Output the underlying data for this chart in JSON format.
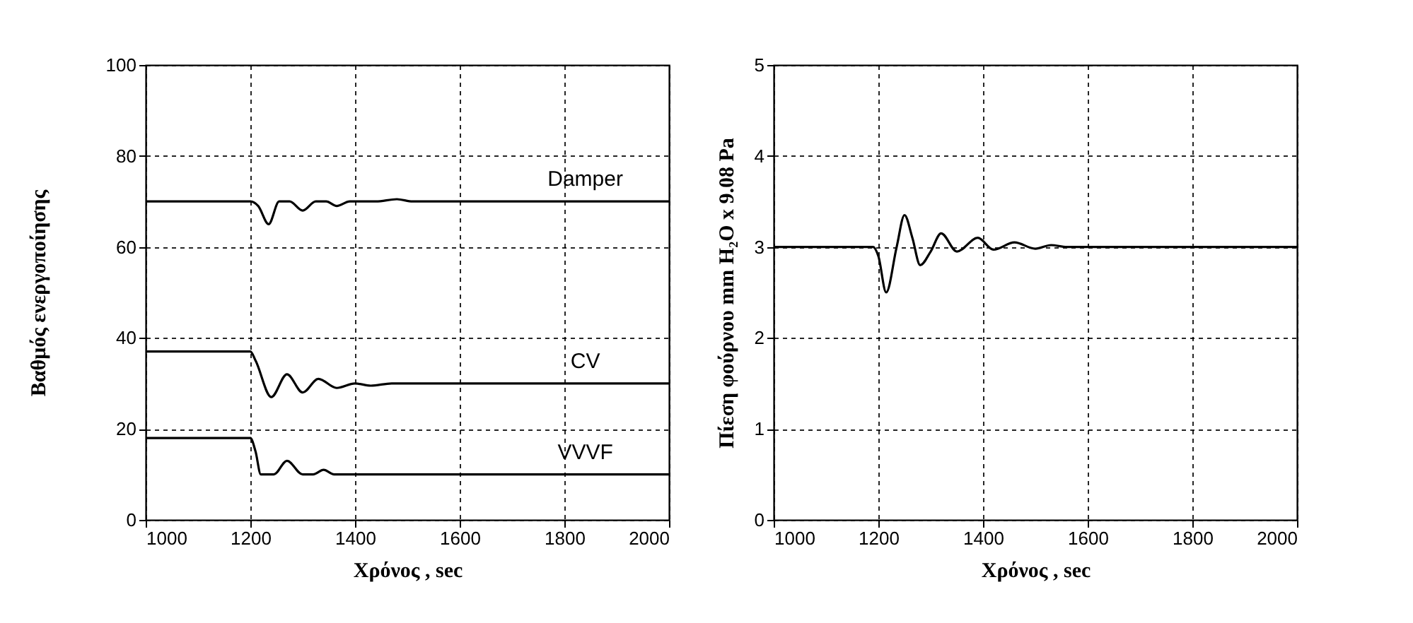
{
  "chart_data": [
    {
      "type": "line",
      "xlabel": "Χρόνος , sec",
      "ylabel": "Βαθμός ενεργοποίησης",
      "xlim": [
        1000,
        2000
      ],
      "xticks": [
        1000,
        1200,
        1400,
        1600,
        1800,
        2000
      ],
      "ylim": [
        0,
        100
      ],
      "yticks": [
        0,
        20,
        40,
        60,
        80,
        100
      ],
      "grid": true,
      "legend": false,
      "marker": "none",
      "line_style": "solid",
      "series": [
        {
          "name": "Damper",
          "color": "#000000",
          "x": [
            1000,
            1200,
            1215,
            1235,
            1255,
            1275,
            1300,
            1325,
            1345,
            1365,
            1390,
            1440,
            1480,
            1510,
            2000
          ],
          "values": [
            70,
            70,
            69,
            65,
            70,
            70,
            68,
            70,
            70,
            69,
            70,
            70,
            70.5,
            70,
            70
          ]
        },
        {
          "name": "CV",
          "color": "#000000",
          "x": [
            1000,
            1200,
            1210,
            1240,
            1270,
            1300,
            1330,
            1365,
            1400,
            1430,
            1470,
            2000
          ],
          "values": [
            37,
            37,
            35,
            27,
            32,
            28,
            31,
            29,
            30,
            29.5,
            30,
            30
          ]
        },
        {
          "name": "VVVF",
          "color": "#000000",
          "x": [
            1000,
            1200,
            1210,
            1220,
            1245,
            1270,
            1300,
            1320,
            1340,
            1360,
            2000
          ],
          "values": [
            18,
            18,
            15,
            10,
            10,
            13,
            10,
            10,
            11,
            10,
            10
          ]
        }
      ]
    },
    {
      "type": "line",
      "xlabel": "Χρόνος , sec",
      "ylabel": "Πίεση φούρνου mm H₂O x 9.08 Pa",
      "xlim": [
        1000,
        2000
      ],
      "xticks": [
        1000,
        1200,
        1400,
        1600,
        1800,
        2000
      ],
      "ylim": [
        0,
        5
      ],
      "yticks": [
        0,
        1,
        2,
        3,
        4,
        5
      ],
      "grid": true,
      "legend": false,
      "marker": "none",
      "line_style": "solid",
      "series": [
        {
          "color": "#000000",
          "x": [
            1000,
            1190,
            1200,
            1215,
            1235,
            1250,
            1265,
            1280,
            1300,
            1320,
            1350,
            1390,
            1420,
            1460,
            1500,
            1530,
            1560,
            2000
          ],
          "values": [
            3,
            3,
            2.9,
            2.5,
            3.0,
            3.35,
            3.1,
            2.8,
            2.95,
            3.15,
            2.95,
            3.1,
            2.97,
            3.05,
            2.98,
            3.02,
            3,
            3
          ]
        }
      ]
    }
  ]
}
